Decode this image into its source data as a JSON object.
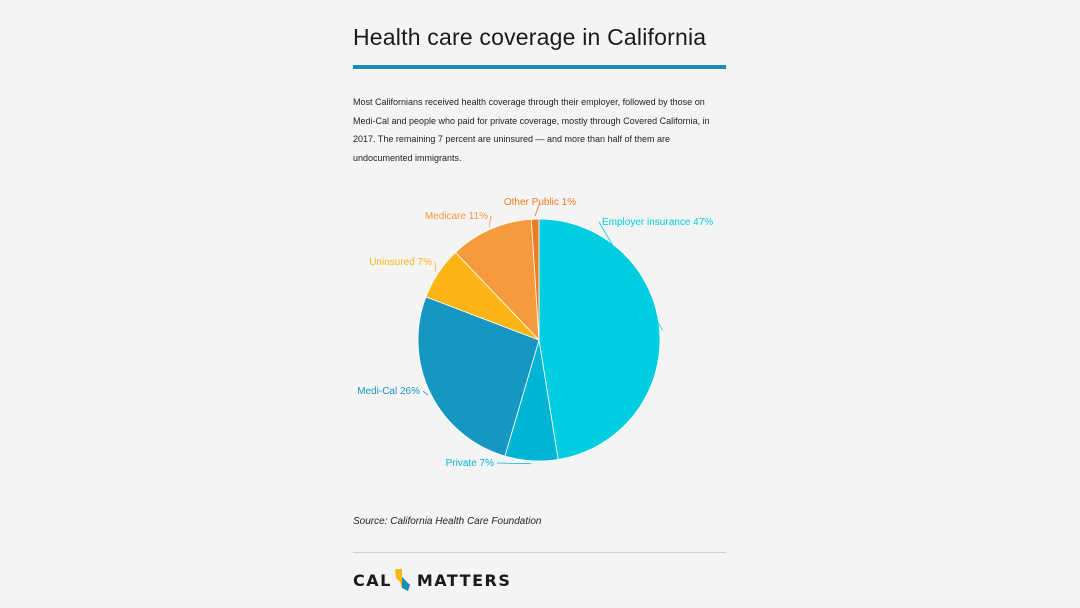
{
  "title": "Health care coverage in California",
  "intro": "Most Californians received health coverage through their employer, followed by those on Medi-Cal and people who paid for private coverage, mostly through Covered California, in 2017. The remaining 7 percent are uninsured — and more than half of them are undocumented immigrants.",
  "source": "Source: California Health Care Foundation",
  "logo": {
    "left": "CAL",
    "right": "MATTERS"
  },
  "colors": {
    "title_rule": "#1b8eb4",
    "employer": "#00cde0",
    "private": "#00b4d4",
    "medi_cal": "#1697c2",
    "uninsured": "#fbb616",
    "medicare": "#f79a3d",
    "other_public": "#f07a1f"
  },
  "chart_data": {
    "type": "pie",
    "title": "Health care coverage in California",
    "start_angle_deg": 0,
    "direction": "clockwise",
    "slices": [
      {
        "label": "Employer insurance 47%",
        "value": 47,
        "color": "#00cde0"
      },
      {
        "label": "Private 7%",
        "value": 7,
        "color": "#00b4d4"
      },
      {
        "label": "Medi-Cal 26%",
        "value": 26,
        "color": "#1697c2"
      },
      {
        "label": "Uninsured 7%",
        "value": 7,
        "color": "#fbb616"
      },
      {
        "label": "Medicare 11%",
        "value": 11,
        "color": "#f79a3d"
      },
      {
        "label": "Other Public 1%",
        "value": 1,
        "color": "#f07a1f"
      }
    ]
  }
}
